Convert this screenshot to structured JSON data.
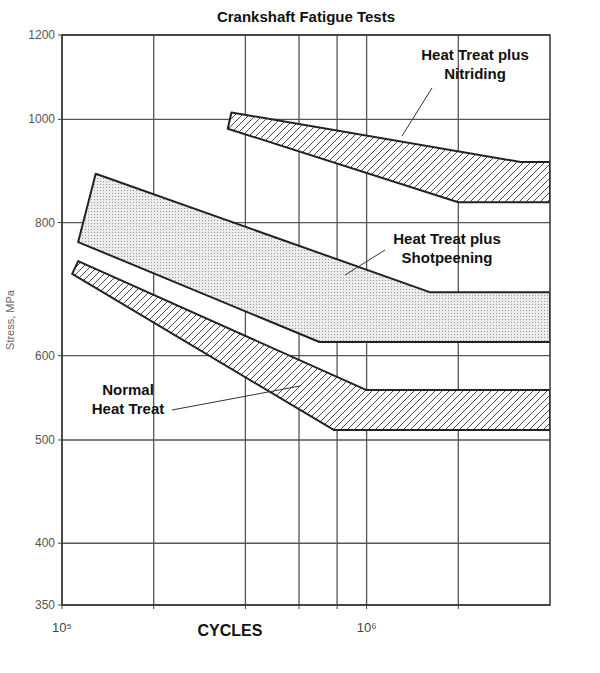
{
  "chart_data": {
    "type": "band",
    "title": "Crankshaft Fatigue Tests",
    "x_label": "CYCLES",
    "y_label": "Stress, MPa",
    "log": true,
    "grid": true,
    "xlim": [
      100000,
      4000000
    ],
    "ylim": [
      350,
      1200
    ],
    "xticks": [
      {
        "value": 100000,
        "label": "10⁵"
      },
      {
        "value": 200000,
        "label": null
      },
      {
        "value": 400000,
        "label": null
      },
      {
        "value": 600000,
        "label": null
      },
      {
        "value": 800000,
        "label": null
      },
      {
        "value": 1000000,
        "label": "10⁶"
      },
      {
        "value": 2000000,
        "label": null
      }
    ],
    "yticks": [
      350,
      400,
      500,
      600,
      800,
      1000,
      1200
    ],
    "series": [
      {
        "name": "Heat Treat plus\nNitriding",
        "color": "#222222",
        "upper_x": [
          360000,
          3200000,
          4000000
        ],
        "upper": [
          1015,
          912,
          912
        ],
        "lower_x": [
          350000,
          2000000,
          4000000
        ],
        "lower": [
          980,
          836,
          836
        ]
      },
      {
        "name": "Heat Treat plus\nShotpeening",
        "color": "#222222",
        "upper_x": [
          129000,
          1620000,
          4000000
        ],
        "upper": [
          889,
          688,
          688
        ],
        "lower_x": [
          113000,
          700000,
          4000000
        ],
        "lower": [
          767,
          618,
          618
        ]
      },
      {
        "name": "Normal\nHeat Treat",
        "color": "#222222",
        "upper_x": [
          113000,
          1000000,
          4000000
        ],
        "upper": [
          736,
          557,
          557
        ],
        "lower_x": [
          108000,
          780000,
          4000000
        ],
        "lower": [
          716,
          511,
          511
        ]
      }
    ]
  }
}
